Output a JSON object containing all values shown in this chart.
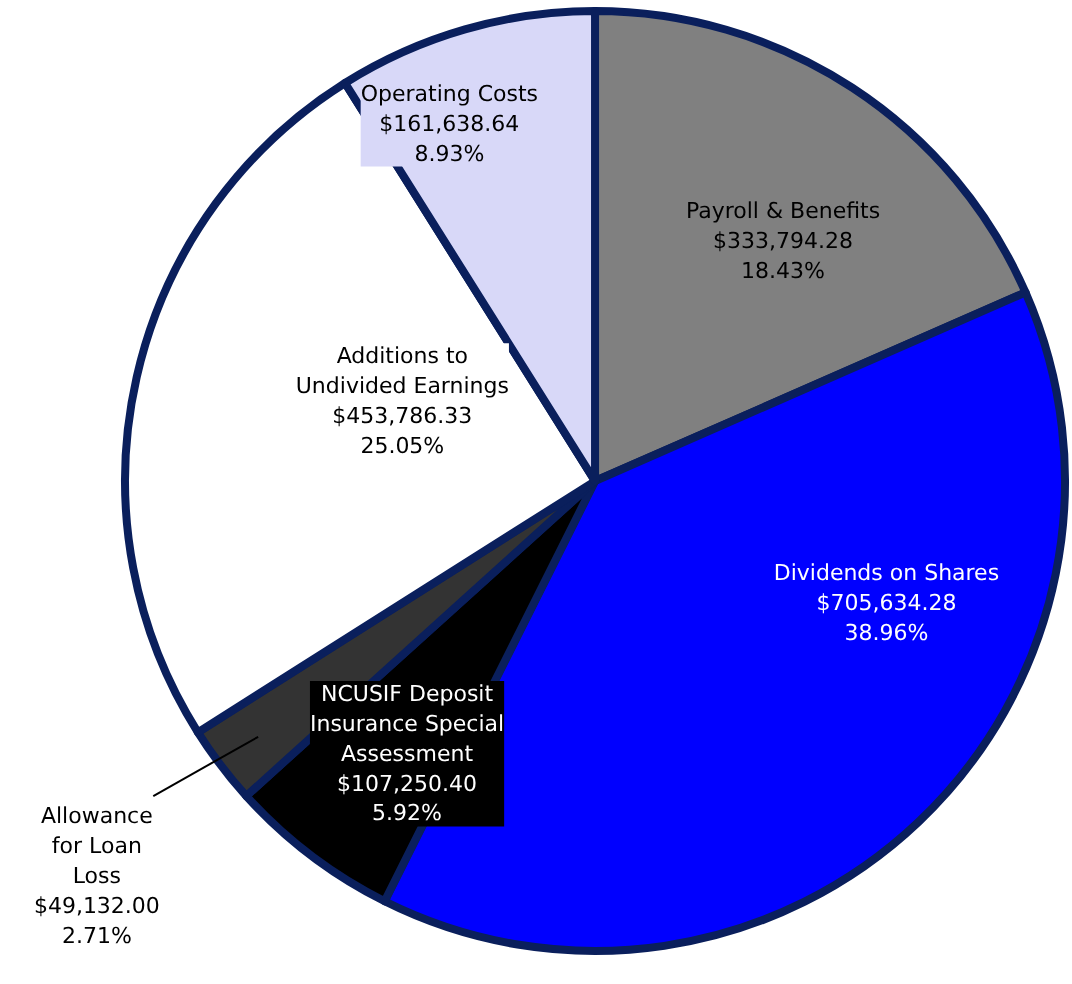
{
  "chart_data": {
    "type": "pie",
    "categories": [
      "Payroll & Benefits",
      "Dividends on Shares",
      "NCUSIF Deposit Insurance Special Assessment",
      "Allowance for Loan Loss",
      "Additions to Undivided Earnings",
      "Operating Costs"
    ],
    "values": [
      333794.28,
      705634.28,
      107250.4,
      49132.0,
      453786.33,
      161638.64
    ],
    "colors": [
      "#808080",
      "#0000ff",
      "#000000",
      "#333333",
      "#ffffff",
      "#d8d8f8"
    ],
    "value_labels": [
      "$333,794.28\n18.43%",
      "$705,634.28\n38.96%",
      "$107,250.40\n5.92%",
      "$49,132.00\n2.71%",
      "$453,786.33\n25.05%",
      "$161,638.64\n8.93%"
    ]
  }
}
